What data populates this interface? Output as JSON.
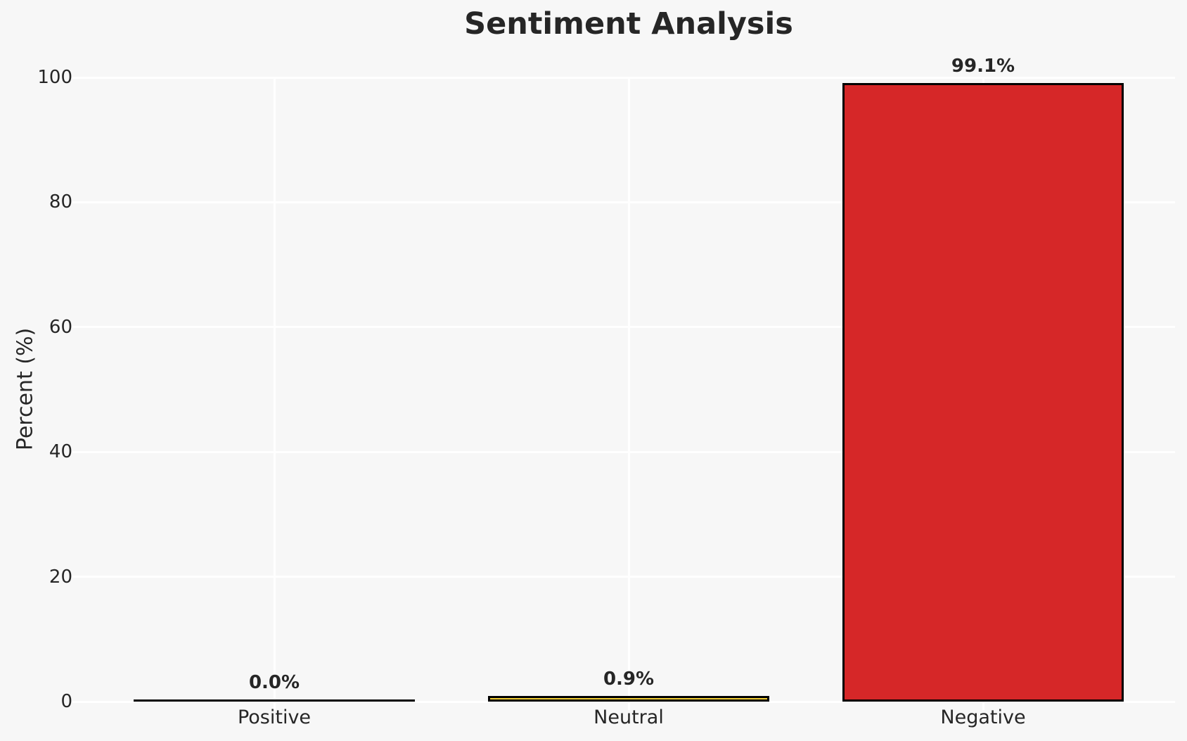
{
  "title": "Sentiment Analysis",
  "chart_data": {
    "type": "bar",
    "title": "Sentiment Analysis",
    "xlabel": "",
    "ylabel": "Percent (%)",
    "categories": [
      "Positive",
      "Neutral",
      "Negative"
    ],
    "values": [
      0.0,
      0.9,
      99.1
    ],
    "value_labels": [
      "0.0%",
      "0.9%",
      "99.1%"
    ],
    "bar_colors": [
      null,
      "#F2CE33",
      "#D62728"
    ],
    "bar_edge_color": "#000000",
    "yticks": [
      0,
      20,
      40,
      60,
      80,
      100
    ],
    "ytick_labels": [
      "0",
      "20",
      "40",
      "60",
      "80",
      "100"
    ],
    "ylim": [
      0,
      100
    ],
    "grid": true,
    "gridline_color": "#ffffff",
    "background_color": "#f7f7f7",
    "text_color": "#262626",
    "legend": null
  }
}
